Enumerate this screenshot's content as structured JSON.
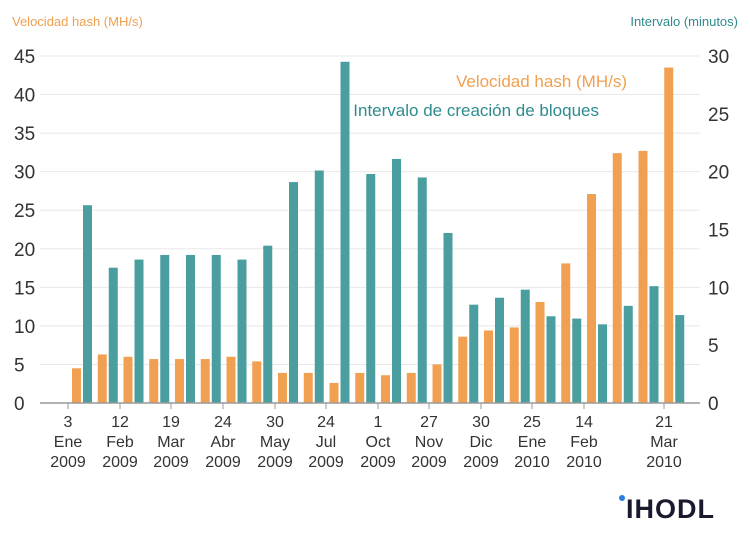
{
  "chart_data": {
    "type": "bar",
    "left_axis_title": "Velocidad hash (MH/s)",
    "right_axis_title": "Intervalo (minutos)",
    "left_ylim": [
      0,
      45
    ],
    "right_ylim": [
      0,
      30
    ],
    "left_ticks": [
      0,
      5,
      10,
      15,
      20,
      25,
      30,
      35,
      40,
      45
    ],
    "right_ticks": [
      0,
      5,
      10,
      15,
      20,
      25,
      30
    ],
    "grid": true,
    "x_tick_labels": [
      [
        "3",
        "Ene",
        "2009"
      ],
      [
        "12",
        "Feb",
        "2009"
      ],
      [
        "19",
        "Mar",
        "2009"
      ],
      [
        "24",
        "Abr",
        "2009"
      ],
      [
        "30",
        "May",
        "2009"
      ],
      [
        "24",
        "Jul",
        "2009"
      ],
      [
        "1",
        "Oct",
        "2009"
      ],
      [
        "27",
        "Nov",
        "2009"
      ],
      [
        "30",
        "Dic",
        "2009"
      ],
      [
        "25",
        "Ene",
        "2010"
      ],
      [
        "14",
        "Feb",
        "2010"
      ],
      [
        "21",
        "Mar",
        "2010"
      ]
    ],
    "series": [
      {
        "name": "Velocidad hash (MH/s)",
        "axis": "left",
        "color": "#f0a050",
        "values": [
          4.5,
          6.3,
          6.0,
          5.7,
          5.7,
          5.7,
          6.0,
          5.4,
          3.9,
          3.9,
          2.6,
          3.9,
          3.6,
          3.9,
          5.0,
          8.6,
          9.4,
          9.8,
          13.1,
          18.1,
          27.1,
          32.4,
          32.7,
          43.5
        ]
      },
      {
        "name": "Intervalo de creación de bloques",
        "axis": "right",
        "color": "#4a9ea0",
        "values": [
          17.1,
          11.7,
          12.4,
          12.8,
          12.8,
          12.8,
          12.4,
          13.6,
          19.1,
          20.1,
          29.5,
          19.8,
          21.1,
          19.5,
          14.7,
          8.5,
          9.1,
          9.8,
          7.5,
          7.3,
          6.8,
          8.4,
          10.1,
          7.6
        ]
      }
    ]
  },
  "logo": "IHODL",
  "colors": {
    "orange": "#f0a050",
    "teal": "#4a9ea0",
    "label_orange": "#f0a050",
    "label_teal": "#2e8b8e"
  }
}
